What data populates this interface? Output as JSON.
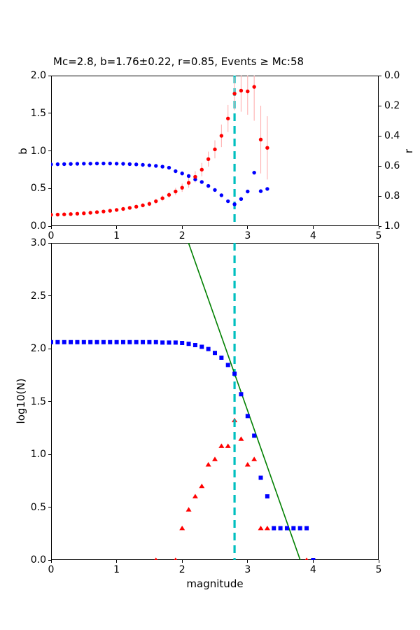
{
  "figure": {
    "background": "#ffffff"
  },
  "colors": {
    "red_marker": "#ff0000",
    "blue_marker": "#0000ff",
    "error_bar": "#ffb0b0",
    "fit_line": "#008000",
    "mc_line": "#00bfbf",
    "axis": "#000000"
  },
  "chart_data": [
    {
      "id": "b-and-r-vs-cutoff-magnitude",
      "type": "scatter",
      "title": "Mc=2.8, b=1.76±0.22, r=0.85, Events ≥ Mc:58",
      "title_loc": "left",
      "xlim": [
        0,
        5
      ],
      "x_ticks": [
        "0",
        "1",
        "2",
        "3",
        "4",
        "5"
      ],
      "y_left": {
        "label": "b",
        "lim": [
          0.0,
          2.0
        ],
        "ticks": [
          "0.0",
          "0.5",
          "1.0",
          "1.5",
          "2.0"
        ]
      },
      "y_right": {
        "label": "r",
        "lim": [
          0.0,
          1.0
        ],
        "inverted": true,
        "ticks": [
          "0.0",
          "0.2",
          "0.4",
          "0.6",
          "0.8",
          "1.0"
        ]
      },
      "grid": false,
      "vline": {
        "x": 2.8,
        "color": "#00bfbf",
        "style": "dashed",
        "width": 3.2
      },
      "series": [
        {
          "name": "b-value vs cutoff magnitude (left axis, red dots with error bars)",
          "marker": "circle",
          "color": "#ff0000",
          "axis": "left",
          "x": [
            0.0,
            0.1,
            0.2,
            0.3,
            0.4,
            0.5,
            0.6,
            0.7,
            0.8,
            0.9,
            1.0,
            1.1,
            1.2,
            1.3,
            1.4,
            1.5,
            1.6,
            1.7,
            1.8,
            1.9,
            2.0,
            2.1,
            2.2,
            2.3,
            2.4,
            2.5,
            2.6,
            2.7,
            2.8,
            2.9,
            3.0,
            3.1,
            3.2,
            3.3
          ],
          "y": [
            0.15,
            0.153,
            0.156,
            0.16,
            0.165,
            0.17,
            0.177,
            0.185,
            0.194,
            0.204,
            0.215,
            0.228,
            0.242,
            0.258,
            0.276,
            0.296,
            0.33,
            0.37,
            0.415,
            0.46,
            0.51,
            0.575,
            0.655,
            0.75,
            0.89,
            1.02,
            1.2,
            1.43,
            1.76,
            1.8,
            1.79,
            1.85,
            1.15,
            1.04
          ],
          "yerr": [
            0.01,
            0.01,
            0.01,
            0.01,
            0.012,
            0.012,
            0.014,
            0.015,
            0.016,
            0.018,
            0.02,
            0.022,
            0.024,
            0.026,
            0.028,
            0.03,
            0.034,
            0.038,
            0.042,
            0.048,
            0.055,
            0.065,
            0.075,
            0.09,
            0.1,
            0.12,
            0.15,
            0.18,
            0.22,
            0.28,
            0.31,
            0.45,
            0.45,
            0.42
          ],
          "errbar_color": "#ffb0b0"
        },
        {
          "name": "r goodness-of-fit vs cutoff magnitude (right axis, blue dots)",
          "marker": "circle",
          "color": "#0000ff",
          "axis": "right",
          "x": [
            0.0,
            0.1,
            0.2,
            0.3,
            0.4,
            0.5,
            0.6,
            0.7,
            0.8,
            0.9,
            1.0,
            1.1,
            1.2,
            1.3,
            1.4,
            1.5,
            1.6,
            1.7,
            1.8,
            1.9,
            2.0,
            2.1,
            2.2,
            2.3,
            2.4,
            2.5,
            2.6,
            2.7,
            2.8,
            2.9,
            3.0,
            3.1,
            3.2,
            3.3
          ],
          "y": [
            0.59,
            0.589,
            0.588,
            0.587,
            0.586,
            0.585,
            0.585,
            0.584,
            0.584,
            0.584,
            0.585,
            0.586,
            0.588,
            0.59,
            0.593,
            0.596,
            0.6,
            0.605,
            0.612,
            0.635,
            0.65,
            0.667,
            0.69,
            0.707,
            0.733,
            0.76,
            0.795,
            0.835,
            0.855,
            0.82,
            0.77,
            0.645,
            0.768,
            0.753
          ]
        }
      ]
    },
    {
      "id": "frequency-magnitude-distribution",
      "type": "scatter",
      "xlabel": "magnitude",
      "ylabel": "log10(N)",
      "xlim": [
        0,
        5
      ],
      "ylim": [
        0.0,
        3.0
      ],
      "x_ticks": [
        "0",
        "1",
        "2",
        "3",
        "4",
        "5"
      ],
      "y_ticks": [
        "0.0",
        "0.5",
        "1.0",
        "1.5",
        "2.0",
        "2.5",
        "3.0"
      ],
      "grid": false,
      "vline": {
        "x": 2.8,
        "color": "#00bfbf",
        "style": "dashed",
        "width": 3.2
      },
      "fit_line": {
        "x": [
          2.097,
          3.802
        ],
        "y": [
          3.0,
          0.0
        ],
        "color": "#008000",
        "width": 1.6
      },
      "series": [
        {
          "name": "cumulative number of events log10(N>=M) (blue squares)",
          "marker": "square",
          "color": "#0000ff",
          "x": [
            0.0,
            0.1,
            0.2,
            0.3,
            0.4,
            0.5,
            0.6,
            0.7,
            0.8,
            0.9,
            1.0,
            1.1,
            1.2,
            1.3,
            1.4,
            1.5,
            1.6,
            1.7,
            1.8,
            1.9,
            2.0,
            2.1,
            2.2,
            2.3,
            2.4,
            2.5,
            2.6,
            2.7,
            2.8,
            2.9,
            3.0,
            3.1,
            3.2,
            3.3,
            3.4,
            3.5,
            3.6,
            3.7,
            3.8,
            3.9,
            4.0
          ],
          "y": [
            2.061,
            2.061,
            2.061,
            2.061,
            2.061,
            2.061,
            2.061,
            2.061,
            2.061,
            2.061,
            2.061,
            2.061,
            2.061,
            2.061,
            2.061,
            2.061,
            2.061,
            2.057,
            2.057,
            2.057,
            2.053,
            2.045,
            2.033,
            2.017,
            1.996,
            1.959,
            1.914,
            1.845,
            1.763,
            1.568,
            1.362,
            1.176,
            0.778,
            0.602,
            0.301,
            0.301,
            0.301,
            0.301,
            0.301,
            0.301,
            0.0
          ]
        },
        {
          "name": "non-cumulative number of events per bin (red triangles)",
          "marker": "triangle",
          "color": "#ff0000",
          "x": [
            1.6,
            1.9,
            2.0,
            2.1,
            2.2,
            2.3,
            2.4,
            2.5,
            2.6,
            2.7,
            2.8,
            2.9,
            3.0,
            3.1,
            3.2,
            3.3,
            3.9
          ],
          "y": [
            0.0,
            0.0,
            0.301,
            0.477,
            0.602,
            0.699,
            0.903,
            0.954,
            1.079,
            1.079,
            1.322,
            1.146,
            0.903,
            0.954,
            0.301,
            0.301,
            0.0
          ]
        }
      ]
    }
  ]
}
